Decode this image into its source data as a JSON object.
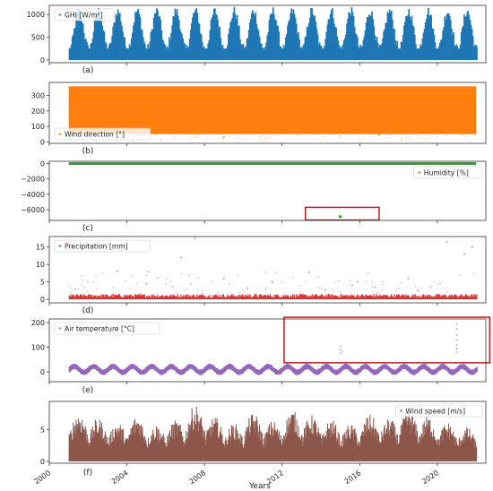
{
  "colors": {
    "ghi": "#1f77b4",
    "wind_direction": "#ff7f0e",
    "humidity": "#2ca02c",
    "precipitation": "#d62728",
    "air_temperature": "#9467bd",
    "wind_speed": "#8c564b",
    "highlight_box": "#c0181e",
    "axes": "#333333"
  },
  "x_axis": {
    "label": "Years",
    "ticks": [
      "2000",
      "2004",
      "2008",
      "2012",
      "2016",
      "2020"
    ],
    "tick_values": [
      2000,
      2004,
      2008,
      2012,
      2016,
      2020
    ],
    "range": [
      2000,
      2022.5
    ]
  },
  "chart_data": [
    {
      "type": "scatter",
      "panel_label": "(a)",
      "legend": "GHI [W/m²]",
      "legend_placement": "top-left",
      "color_key": "ghi",
      "x_range": [
        2001,
        2022
      ],
      "ylim": [
        -60,
        1200
      ],
      "yticks": [
        0,
        500,
        1000
      ],
      "ytick_labels": [
        "0",
        "500",
        "1000"
      ],
      "pattern": "seasonal",
      "mean": 480,
      "amplitude": 420,
      "y_min": 0,
      "y_max": 1180,
      "annotations": []
    },
    {
      "type": "scatter",
      "panel_label": "(b)",
      "legend": "Wind direction [°]",
      "legend_placement": "bottom-left",
      "color_key": "wind_direction",
      "x_range": [
        2001,
        2022
      ],
      "ylim": [
        -10,
        385
      ],
      "yticks": [
        0,
        100,
        200,
        300
      ],
      "ytick_labels": [
        "0",
        "100",
        "200",
        "300"
      ],
      "pattern": "full-band",
      "y_min": 50,
      "y_max": 360,
      "outliers_below": [
        [
          2004.5,
          40
        ],
        [
          2009,
          30
        ],
        [
          2013.5,
          55
        ],
        [
          2017,
          45
        ],
        [
          2020,
          60
        ]
      ],
      "annotations": []
    },
    {
      "type": "scatter",
      "panel_label": "(c)",
      "legend": "Humidity [%]",
      "legend_placement": "right",
      "color_key": "humidity",
      "x_range": [
        2001,
        2022
      ],
      "ylim": [
        -7400,
        300
      ],
      "yticks": [
        0,
        -2000,
        -4000,
        -6000
      ],
      "ytick_labels": [
        "0",
        "−2000",
        "−4000",
        "−6000"
      ],
      "pattern": "flat",
      "y_level": 0,
      "outlier": [
        2015,
        -6900
      ],
      "annotations": [
        {
          "type": "box",
          "x0": 2013.2,
          "x1": 2017.0,
          "y0": -7350,
          "y1": -5700
        }
      ]
    },
    {
      "type": "scatter",
      "panel_label": "(d)",
      "legend": "Precipitation [mm]",
      "legend_placement": "top-left",
      "color_key": "precipitation",
      "x_range": [
        2001,
        2022
      ],
      "ylim": [
        -1,
        18
      ],
      "yticks": [
        0,
        5,
        10,
        15
      ],
      "ytick_labels": [
        "0",
        "5",
        "10",
        "15"
      ],
      "pattern": "base-band",
      "y_band_max": 1.2,
      "outliers": [
        [
          2003.5,
          8
        ],
        [
          2005,
          4.5
        ],
        [
          2006.8,
          12
        ],
        [
          2007.5,
          17.5
        ],
        [
          2009,
          6
        ],
        [
          2010.2,
          3.2
        ],
        [
          2011.5,
          5
        ],
        [
          2013.4,
          7.8
        ],
        [
          2014.2,
          2.7
        ],
        [
          2015.9,
          5
        ],
        [
          2016.8,
          3.5
        ],
        [
          2018.5,
          6
        ],
        [
          2019,
          2.5
        ],
        [
          2020.5,
          16.5
        ],
        [
          2021.4,
          13
        ],
        [
          2021.8,
          15
        ]
      ],
      "annotations": []
    },
    {
      "type": "scatter",
      "panel_label": "(e)",
      "legend": "Air temperature [°C]",
      "legend_placement": "top-left",
      "color_key": "air_temperature",
      "x_range": [
        2001,
        2022
      ],
      "ylim": [
        -40,
        215
      ],
      "yticks": [
        0,
        100,
        200
      ],
      "ytick_labels": [
        "0",
        "100",
        "200"
      ],
      "pattern": "seasonal-band",
      "mean": 10,
      "amplitude": 12,
      "half_width": 9,
      "outliers": [
        [
          2015,
          75
        ],
        [
          2015,
          90
        ],
        [
          2015,
          105
        ],
        [
          2015.1,
          82
        ],
        [
          2021,
          80
        ],
        [
          2021,
          95
        ],
        [
          2021,
          110
        ],
        [
          2021,
          130
        ],
        [
          2021,
          150
        ],
        [
          2021,
          175
        ],
        [
          2021,
          195
        ]
      ],
      "annotations": [
        {
          "type": "box",
          "x0": 2012.1,
          "x1": 2022.7,
          "y0": 37,
          "y1": 222
        }
      ]
    },
    {
      "type": "scatter",
      "panel_label": "(f)",
      "legend": "Wind speed [m/s]",
      "legend_placement": "top-right",
      "color_key": "wind_speed",
      "x_range": [
        2001,
        2022
      ],
      "ylim": [
        -0.3,
        9.4
      ],
      "yticks": [
        0,
        5
      ],
      "ytick_labels": [
        "0",
        "5"
      ],
      "pattern": "bars",
      "peaks": [
        7.8,
        6.8,
        6.2,
        7.2,
        5.8,
        6.5,
        8.9,
        7.0,
        6.0,
        7.6,
        6.4,
        8.1,
        7.3,
        6.6,
        5.9,
        7.4,
        6.8,
        8.2,
        7.1,
        6.2,
        5.4,
        7.0
      ],
      "annotations": []
    }
  ]
}
